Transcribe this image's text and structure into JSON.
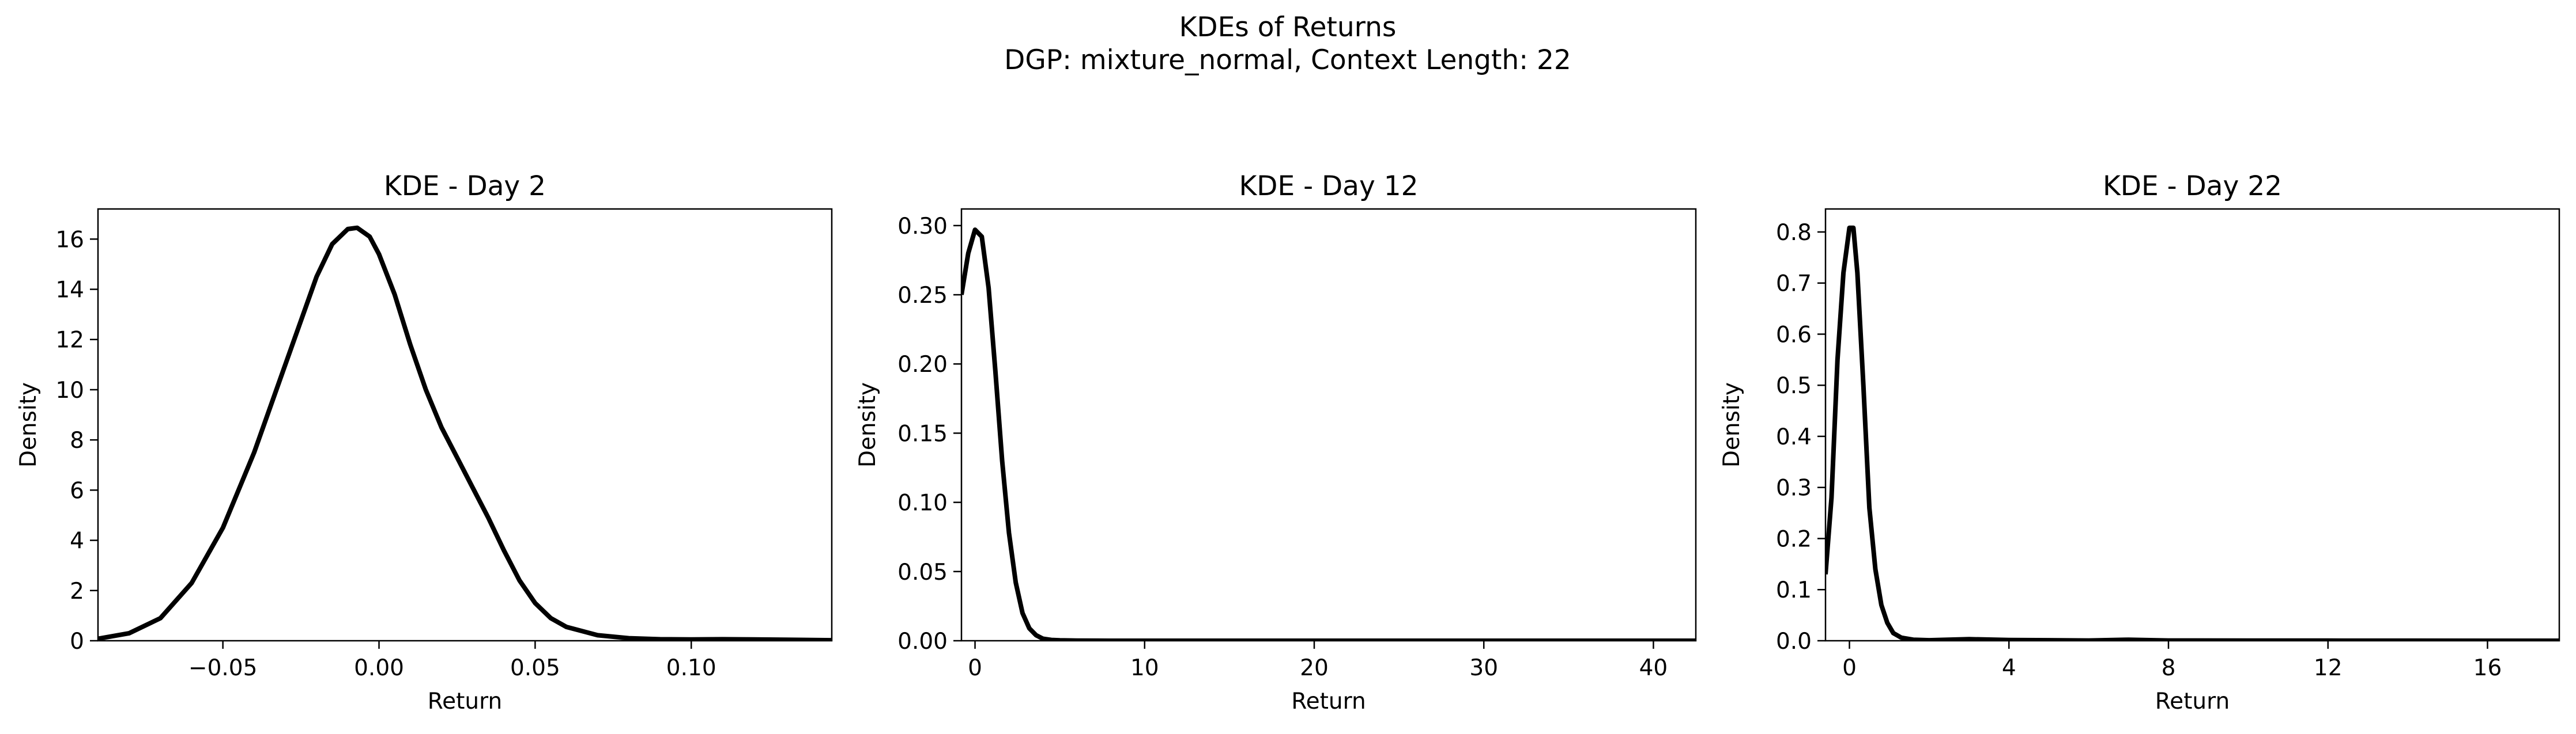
{
  "figure": {
    "suptitle_line1": "KDEs of Returns",
    "suptitle_line2": "DGP: mixture_normal, Context Length: 22"
  },
  "colors": {
    "line": "#000000",
    "axes": "#000000",
    "background": "#ffffff"
  },
  "chart_data": [
    {
      "type": "line",
      "title": "KDE - Day 2",
      "xlabel": "Return",
      "ylabel": "Density",
      "xlim": [
        -0.09,
        0.145
      ],
      "ylim": [
        0,
        17.2
      ],
      "xticks": [
        -0.05,
        0.0,
        0.05,
        0.1
      ],
      "xtick_labels": [
        "−0.05",
        "0.00",
        "0.05",
        "0.10"
      ],
      "yticks": [
        0,
        2,
        4,
        6,
        8,
        10,
        12,
        14,
        16
      ],
      "ytick_labels": [
        "0",
        "2",
        "4",
        "6",
        "8",
        "10",
        "12",
        "14",
        "16"
      ],
      "grid": false,
      "series": [
        {
          "x": [
            -0.09,
            -0.08,
            -0.07,
            -0.06,
            -0.05,
            -0.04,
            -0.03,
            -0.02,
            -0.015,
            -0.01,
            -0.007,
            -0.003,
            0.0,
            0.005,
            0.01,
            0.015,
            0.02,
            0.025,
            0.03,
            0.035,
            0.04,
            0.045,
            0.05,
            0.055,
            0.06,
            0.07,
            0.08,
            0.09,
            0.1,
            0.11,
            0.12,
            0.13,
            0.145
          ],
          "y": [
            0.08,
            0.3,
            0.9,
            2.3,
            4.5,
            7.5,
            11.0,
            14.5,
            15.8,
            16.4,
            16.45,
            16.1,
            15.4,
            13.8,
            11.8,
            10.0,
            8.5,
            7.3,
            6.1,
            4.9,
            3.6,
            2.4,
            1.5,
            0.9,
            0.55,
            0.22,
            0.1,
            0.06,
            0.05,
            0.06,
            0.05,
            0.04,
            0.02
          ]
        }
      ]
    },
    {
      "type": "line",
      "title": "KDE - Day 12",
      "xlabel": "Return",
      "ylabel": "Density",
      "xlim": [
        -0.8,
        42.5
      ],
      "ylim": [
        0,
        0.312
      ],
      "xticks": [
        0,
        10,
        20,
        30,
        40
      ],
      "xtick_labels": [
        "0",
        "10",
        "20",
        "30",
        "40"
      ],
      "yticks": [
        0.0,
        0.05,
        0.1,
        0.15,
        0.2,
        0.25,
        0.3
      ],
      "ytick_labels": [
        "0.00",
        "0.05",
        "0.10",
        "0.15",
        "0.20",
        "0.25",
        "0.30"
      ],
      "grid": false,
      "series": [
        {
          "x": [
            -0.8,
            -0.4,
            0.0,
            0.4,
            0.8,
            1.2,
            1.6,
            2.0,
            2.4,
            2.8,
            3.2,
            3.6,
            4.0,
            4.5,
            5.0,
            6.0,
            8.0,
            10.0,
            15.0,
            20.0,
            30.0,
            42.5
          ],
          "y": [
            0.25,
            0.28,
            0.297,
            0.292,
            0.255,
            0.195,
            0.13,
            0.078,
            0.042,
            0.02,
            0.009,
            0.004,
            0.0015,
            0.0006,
            0.0003,
            0.0001,
            0.0,
            0.0,
            0.0,
            0.0,
            0.0,
            0.0
          ]
        }
      ]
    },
    {
      "type": "line",
      "title": "KDE - Day 22",
      "xlabel": "Return",
      "ylabel": "Density",
      "xlim": [
        -0.6,
        17.8
      ],
      "ylim": [
        0,
        0.845
      ],
      "xticks": [
        0,
        4,
        8,
        12,
        16
      ],
      "xtick_labels": [
        "0",
        "4",
        "8",
        "12",
        "16"
      ],
      "yticks": [
        0.0,
        0.1,
        0.2,
        0.3,
        0.4,
        0.5,
        0.6,
        0.7,
        0.8
      ],
      "ytick_labels": [
        "0.0",
        "0.1",
        "0.2",
        "0.3",
        "0.4",
        "0.5",
        "0.6",
        "0.7",
        "0.8"
      ],
      "grid": false,
      "series": [
        {
          "x": [
            -0.6,
            -0.45,
            -0.3,
            -0.15,
            0.0,
            0.1,
            0.2,
            0.35,
            0.5,
            0.65,
            0.8,
            0.95,
            1.1,
            1.3,
            1.6,
            2.0,
            3.0,
            4.0,
            6.0,
            7.0,
            8.0,
            10.0,
            12.0,
            14.0,
            16.0,
            17.8
          ],
          "y": [
            0.13,
            0.28,
            0.55,
            0.72,
            0.808,
            0.808,
            0.72,
            0.5,
            0.26,
            0.14,
            0.07,
            0.035,
            0.015,
            0.006,
            0.002,
            0.001,
            0.003,
            0.0015,
            0.0005,
            0.002,
            0.0005,
            0.0003,
            0.0002,
            0.0001,
            0.0,
            0.0
          ]
        }
      ]
    }
  ]
}
